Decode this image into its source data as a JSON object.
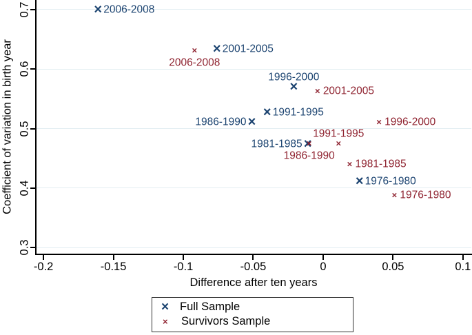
{
  "chart_data": {
    "type": "scatter",
    "title": "",
    "xlabel": "Difference after ten years",
    "ylabel": "Coefficient of variation in birth year",
    "xlim": [
      -0.205,
      0.106
    ],
    "ylim": [
      0.29,
      0.716
    ],
    "x_ticks": [
      -0.2,
      -0.15,
      -0.1,
      -0.05,
      0,
      0.05,
      0.1
    ],
    "x_tick_labels": [
      "-0.2",
      "-0.15",
      "-0.1",
      "-0.05",
      "0",
      "0.05",
      "0.1"
    ],
    "y_ticks": [
      0.3,
      0.4,
      0.5,
      0.6,
      0.7
    ],
    "y_tick_labels": [
      "0.3",
      "0.4",
      "0.5",
      "0.6",
      "0.7"
    ],
    "grid": "horizontal",
    "gridline_color": "#e3eef2",
    "legend_position": "bottom-center",
    "marker_glyph": "×",
    "series": [
      {
        "name": "Full Sample",
        "color": "#1b4370",
        "marker": "x-large",
        "points": [
          {
            "label": "2006-2008",
            "x": -0.161,
            "y": 0.7,
            "label_pos": "right"
          },
          {
            "label": "2001-2005",
            "x": -0.076,
            "y": 0.634,
            "label_pos": "right"
          },
          {
            "label": "1996-2000",
            "x": -0.021,
            "y": 0.57,
            "label_pos": "above"
          },
          {
            "label": "1991-1995",
            "x": -0.04,
            "y": 0.527,
            "label_pos": "right"
          },
          {
            "label": "1986-1990",
            "x": -0.051,
            "y": 0.511,
            "label_pos": "left"
          },
          {
            "label": "1981-1985",
            "x": -0.011,
            "y": 0.474,
            "label_pos": "left"
          },
          {
            "label": "1976-1980",
            "x": 0.026,
            "y": 0.411,
            "label_pos": "right"
          }
        ]
      },
      {
        "name": "Survivors Sample",
        "color": "#8f2330",
        "marker": "x-small",
        "points": [
          {
            "label": "2006-2008",
            "x": -0.092,
            "y": 0.632,
            "label_pos": "below"
          },
          {
            "label": "2001-2005",
            "x": -0.004,
            "y": 0.563,
            "label_pos": "right"
          },
          {
            "label": "1996-2000",
            "x": 0.04,
            "y": 0.511,
            "label_pos": "right"
          },
          {
            "label": "1991-1995",
            "x": 0.011,
            "y": 0.475,
            "label_pos": "above"
          },
          {
            "label": "1986-1990",
            "x": -0.01,
            "y": 0.475,
            "label_pos": "below"
          },
          {
            "label": "1981-1985",
            "x": 0.019,
            "y": 0.44,
            "label_pos": "right"
          },
          {
            "label": "1976-1980",
            "x": 0.051,
            "y": 0.388,
            "label_pos": "right"
          }
        ]
      }
    ]
  }
}
